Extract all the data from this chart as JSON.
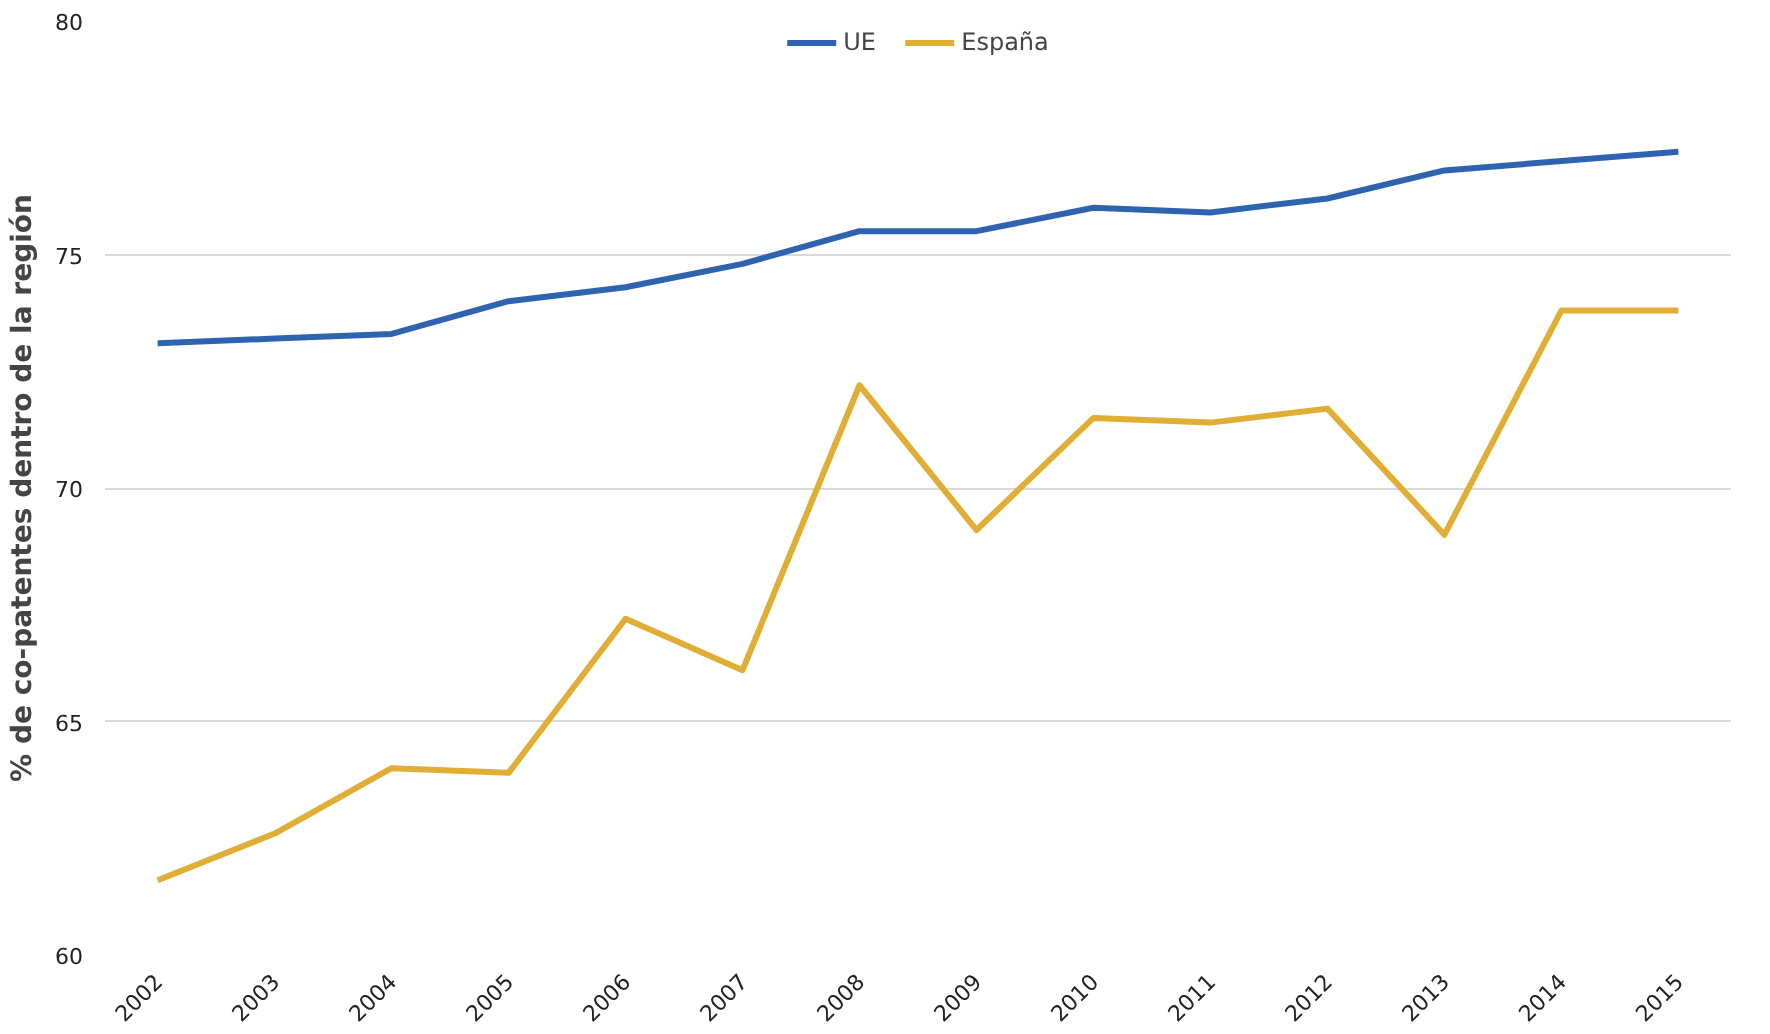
{
  "chart_data": {
    "type": "line",
    "ylabel": "% de co-patentes\ndentro de la región",
    "categories": [
      "2002",
      "2003",
      "2004",
      "2005",
      "2006",
      "2007",
      "2008",
      "2009",
      "2010",
      "2011",
      "2012",
      "2013",
      "2014",
      "2015"
    ],
    "series": [
      {
        "name": "UE",
        "color": "#2e63b0",
        "values": [
          73.1,
          73.2,
          73.3,
          74.0,
          74.3,
          74.8,
          75.5,
          75.5,
          76.0,
          75.9,
          76.2,
          76.8,
          77.0,
          77.2
        ]
      },
      {
        "name": "España",
        "color": "#e0ad35",
        "values": [
          61.6,
          62.6,
          64.0,
          63.9,
          67.2,
          66.1,
          72.2,
          69.1,
          71.5,
          71.4,
          71.7,
          69.0,
          73.8,
          73.8
        ]
      }
    ],
    "ylim": [
      60,
      80
    ],
    "yticks": [
      60,
      65,
      70,
      75,
      80
    ],
    "grid": "y",
    "legend": "top",
    "marker": "none",
    "line_style": "solid"
  }
}
